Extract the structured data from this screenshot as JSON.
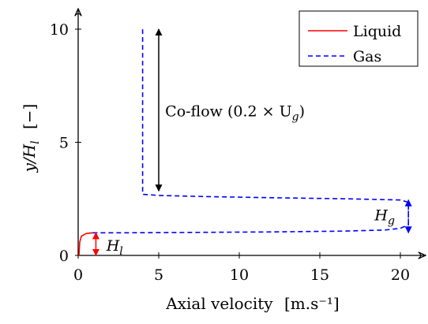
{
  "chart_data": {
    "type": "line",
    "xlabel": "Axial velocity",
    "xlabel_unit": "[m.s⁻¹]",
    "ylabel": "y/H",
    "ylabel_sub": "l",
    "ylabel_unit": "[−]",
    "xlim": [
      0,
      21
    ],
    "ylim": [
      0,
      10.8
    ],
    "xticks": [
      0,
      5,
      10,
      15,
      20
    ],
    "yticks": [
      0,
      5,
      10
    ],
    "grid": false,
    "legend_position": "top-right",
    "series": [
      {
        "name": "Liquid",
        "color": "#ff0000",
        "dash": "solid",
        "points": [
          [
            0.05,
            0.0
          ],
          [
            0.1,
            0.6
          ],
          [
            0.2,
            0.85
          ],
          [
            0.5,
            0.97
          ],
          [
            0.9,
            1.0
          ]
        ]
      },
      {
        "name": "Gas",
        "color": "#0000ff",
        "dash": "dashed",
        "points": [
          [
            0.9,
            1.0
          ],
          [
            3.0,
            1.0
          ],
          [
            8.0,
            1.02
          ],
          [
            12.0,
            1.04
          ],
          [
            16.0,
            1.07
          ],
          [
            19.0,
            1.12
          ],
          [
            20.0,
            1.2
          ],
          [
            20.5,
            1.35
          ],
          [
            20.5,
            2.35
          ],
          [
            20.0,
            2.45
          ],
          [
            17.0,
            2.5
          ],
          [
            12.0,
            2.55
          ],
          [
            8.0,
            2.6
          ],
          [
            5.0,
            2.65
          ],
          [
            4.0,
            2.7
          ],
          [
            4.0,
            10.0
          ]
        ]
      }
    ],
    "annotations": [
      {
        "id": "coflow",
        "text": "Co-flow (0.2 × U",
        "sub": "g",
        "suffix": ")",
        "color": "#000000",
        "arrow": {
          "x": 5.0,
          "y0": 2.85,
          "y1": 10.0
        },
        "label_at": [
          5.4,
          6.4
        ]
      },
      {
        "id": "hg",
        "text": "H",
        "sub": "g",
        "color": "#0000ff",
        "arrow": {
          "x": 20.5,
          "y0": 1.0,
          "y1": 2.45
        },
        "label_at": [
          18.4,
          1.8
        ]
      },
      {
        "id": "hl",
        "text": "H",
        "sub": "l",
        "color": "#ff0000",
        "arrow": {
          "x": 1.1,
          "y0": 0.0,
          "y1": 1.0
        },
        "label_at": [
          1.75,
          0.45
        ]
      }
    ]
  }
}
